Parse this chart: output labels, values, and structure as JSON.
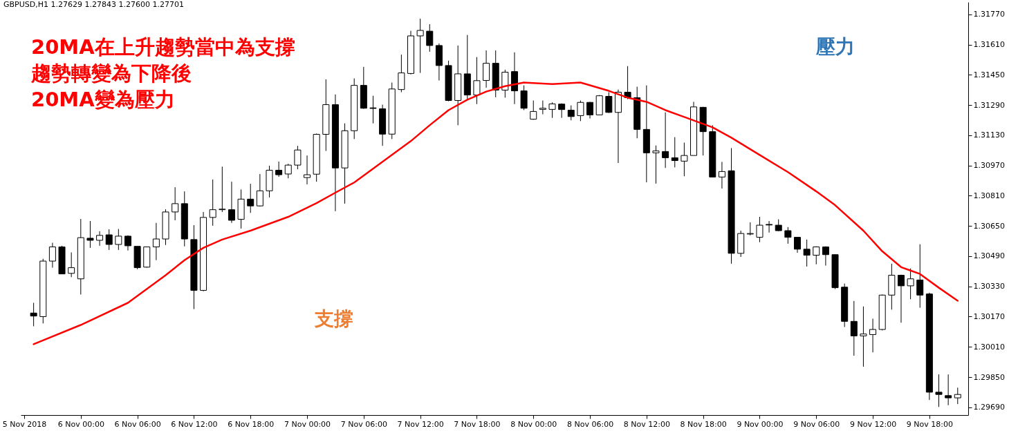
{
  "chart_data": {
    "type": "candlestick",
    "annotations": [
      "GBPUSD,H1 1.27629 1.27843 1.27600 1.27701",
      "20MA在上升趨勢當中為支撐",
      "趨勢轉變為下降後",
      "20MA變為壓力",
      "支撐",
      "壓力"
    ],
    "x": [
      "2018-11-05T19:00",
      "2018-11-05T20:00",
      "2018-11-05T21:00",
      "2018-11-05T22:00",
      "2018-11-05T23:00",
      "2018-11-06T00:00",
      "2018-11-06T01:00",
      "2018-11-06T02:00",
      "2018-11-06T03:00",
      "2018-11-06T04:00",
      "2018-11-06T05:00",
      "2018-11-06T06:00",
      "2018-11-06T07:00",
      "2018-11-06T08:00",
      "2018-11-06T09:00",
      "2018-11-06T10:00",
      "2018-11-06T11:00",
      "2018-11-06T12:00",
      "2018-11-06T13:00",
      "2018-11-06T14:00",
      "2018-11-06T15:00",
      "2018-11-06T16:00",
      "2018-11-06T17:00",
      "2018-11-06T18:00",
      "2018-11-06T19:00",
      "2018-11-06T20:00",
      "2018-11-06T21:00",
      "2018-11-06T22:00",
      "2018-11-06T23:00",
      "2018-11-07T00:00",
      "2018-11-07T01:00",
      "2018-11-07T02:00",
      "2018-11-07T03:00",
      "2018-11-07T04:00",
      "2018-11-07T05:00",
      "2018-11-07T06:00",
      "2018-11-07T07:00",
      "2018-11-07T08:00",
      "2018-11-07T09:00",
      "2018-11-07T10:00",
      "2018-11-07T11:00",
      "2018-11-07T12:00",
      "2018-11-07T13:00",
      "2018-11-07T14:00",
      "2018-11-07T15:00",
      "2018-11-07T16:00",
      "2018-11-07T17:00",
      "2018-11-07T18:00",
      "2018-11-07T19:00",
      "2018-11-07T20:00",
      "2018-11-07T21:00",
      "2018-11-07T22:00",
      "2018-11-07T23:00",
      "2018-11-08T00:00",
      "2018-11-08T01:00",
      "2018-11-08T02:00",
      "2018-11-08T03:00",
      "2018-11-08T04:00",
      "2018-11-08T05:00",
      "2018-11-08T06:00",
      "2018-11-08T07:00",
      "2018-11-08T08:00",
      "2018-11-08T09:00",
      "2018-11-08T10:00",
      "2018-11-08T11:00",
      "2018-11-08T12:00",
      "2018-11-08T13:00",
      "2018-11-08T14:00",
      "2018-11-08T15:00",
      "2018-11-08T16:00",
      "2018-11-08T17:00",
      "2018-11-08T18:00",
      "2018-11-08T19:00",
      "2018-11-08T20:00",
      "2018-11-08T21:00",
      "2018-11-08T22:00",
      "2018-11-08T23:00",
      "2018-11-09T00:00",
      "2018-11-09T01:00",
      "2018-11-09T02:00",
      "2018-11-09T03:00",
      "2018-11-09T04:00",
      "2018-11-09T05:00",
      "2018-11-09T06:00",
      "2018-11-09T07:00",
      "2018-11-09T08:00",
      "2018-11-09T09:00",
      "2018-11-09T10:00",
      "2018-11-09T11:00",
      "2018-11-09T12:00",
      "2018-11-09T13:00",
      "2018-11-09T14:00",
      "2018-11-09T15:00",
      "2018-11-09T16:00",
      "2018-11-09T17:00",
      "2018-11-09T18:00",
      "2018-11-09T19:00",
      "2018-11-09T20:00",
      "2018-11-09T21:00"
    ],
    "ohlc": [
      [
        1.30189,
        1.30243,
        1.30119,
        1.30173
      ],
      [
        1.3017,
        1.30476,
        1.30134,
        1.30464
      ],
      [
        1.30464,
        1.30561,
        1.30429,
        1.30539
      ],
      [
        1.30539,
        1.30545,
        1.30396,
        1.30396
      ],
      [
        1.30399,
        1.3051,
        1.30379,
        1.30429
      ],
      [
        1.3037,
        1.30687,
        1.30287,
        1.30588
      ],
      [
        1.30585,
        1.30676,
        1.30534,
        1.30574
      ],
      [
        1.30574,
        1.30622,
        1.30545,
        1.306
      ],
      [
        1.30603,
        1.30632,
        1.30523,
        1.30552
      ],
      [
        1.30552,
        1.30634,
        1.30523,
        1.30596
      ],
      [
        1.30596,
        1.306,
        1.3052,
        1.30545
      ],
      [
        1.30542,
        1.30542,
        1.30421,
        1.30429
      ],
      [
        1.30432,
        1.30539,
        1.30429,
        1.30539
      ],
      [
        1.30539,
        1.30666,
        1.30469,
        1.30581
      ],
      [
        1.30581,
        1.30738,
        1.30549,
        1.30724
      ],
      [
        1.30724,
        1.30855,
        1.3068,
        1.30768
      ],
      [
        1.30768,
        1.30833,
        1.30542,
        1.30581
      ],
      [
        1.30578,
        1.30654,
        1.3021,
        1.30309
      ],
      [
        1.30309,
        1.30724,
        1.30304,
        1.30695
      ],
      [
        1.30695,
        1.30896,
        1.30651,
        1.30736
      ],
      [
        1.30736,
        1.30964,
        1.30724,
        1.30739
      ],
      [
        1.30736,
        1.30884,
        1.30666,
        1.3068
      ],
      [
        1.30685,
        1.30843,
        1.30636,
        1.30792
      ],
      [
        1.30792,
        1.30873,
        1.30719,
        1.30756
      ],
      [
        1.30756,
        1.30925,
        1.30753,
        1.30836
      ],
      [
        1.30836,
        1.30969,
        1.30801,
        1.30945
      ],
      [
        1.30945,
        1.30991,
        1.3091,
        1.30921
      ],
      [
        1.30925,
        1.30979,
        1.30902,
        1.30972
      ],
      [
        1.30972,
        1.31074,
        1.3095,
        1.31052
      ],
      [
        1.30906,
        1.31023,
        1.3087,
        1.30921
      ],
      [
        1.30924,
        1.31139,
        1.30884,
        1.31135
      ],
      [
        1.31135,
        1.31426,
        1.31047,
        1.31292
      ],
      [
        1.31292,
        1.31346,
        1.30728,
        1.30957
      ],
      [
        1.30957,
        1.31193,
        1.30768,
        1.31154
      ],
      [
        1.31154,
        1.31431,
        1.3111,
        1.31394
      ],
      [
        1.31394,
        1.31492,
        1.3127,
        1.31273
      ],
      [
        1.31275,
        1.31339,
        1.31193,
        1.31272
      ],
      [
        1.3127,
        1.31292,
        1.31074,
        1.31136
      ],
      [
        1.31136,
        1.31409,
        1.3111,
        1.31375
      ],
      [
        1.31372,
        1.31557,
        1.31358,
        1.3146
      ],
      [
        1.31457,
        1.31683,
        1.31452,
        1.31656
      ],
      [
        1.31656,
        1.31747,
        1.3146,
        1.31685
      ],
      [
        1.31681,
        1.31718,
        1.31572,
        1.31605
      ],
      [
        1.31605,
        1.31616,
        1.3142,
        1.31499
      ],
      [
        1.31499,
        1.31525,
        1.3131,
        1.31314
      ],
      [
        1.31314,
        1.31605,
        1.31183,
        1.31455
      ],
      [
        1.31455,
        1.31661,
        1.31318,
        1.31343
      ],
      [
        1.31343,
        1.31544,
        1.31295,
        1.31419
      ],
      [
        1.3142,
        1.31579,
        1.31382,
        1.31511
      ],
      [
        1.31511,
        1.31579,
        1.31331,
        1.31369
      ],
      [
        1.31369,
        1.31477,
        1.31329,
        1.31464
      ],
      [
        1.31467,
        1.31569,
        1.31295,
        1.31365
      ],
      [
        1.31365,
        1.31394,
        1.31263,
        1.31273
      ],
      [
        1.31215,
        1.31314,
        1.31212,
        1.31256
      ],
      [
        1.31267,
        1.31314,
        1.31241,
        1.31273
      ],
      [
        1.31267,
        1.31304,
        1.31222,
        1.31296
      ],
      [
        1.31295,
        1.31299,
        1.31222,
        1.31266
      ],
      [
        1.31263,
        1.31288,
        1.31209,
        1.31229
      ],
      [
        1.31234,
        1.31314,
        1.31205,
        1.31304
      ],
      [
        1.31304,
        1.31307,
        1.31219,
        1.31238
      ],
      [
        1.31238,
        1.31343,
        1.31238,
        1.31339
      ],
      [
        1.31336,
        1.31358,
        1.31248,
        1.31251
      ],
      [
        1.31251,
        1.31372,
        1.30983,
        1.31358
      ],
      [
        1.31358,
        1.31496,
        1.31321,
        1.31329
      ],
      [
        1.31329,
        1.31387,
        1.31114,
        1.31161
      ],
      [
        1.31161,
        1.31394,
        1.30881,
        1.31037
      ],
      [
        1.31037,
        1.31076,
        1.30874,
        1.31047
      ],
      [
        1.31044,
        1.31251,
        1.30957,
        1.31011
      ],
      [
        1.31011,
        1.3112,
        1.3096,
        1.30996
      ],
      [
        1.30993,
        1.31091,
        1.30913,
        1.31023
      ],
      [
        1.31023,
        1.31307,
        1.31023,
        1.3128
      ],
      [
        1.31278,
        1.3128,
        1.31023,
        1.31149
      ],
      [
        1.31149,
        1.31183,
        1.30909,
        1.30909
      ],
      [
        1.30909,
        1.30989,
        1.30848,
        1.30938
      ],
      [
        1.30942,
        1.31062,
        1.3045,
        1.30505
      ],
      [
        1.30505,
        1.30625,
        1.30486,
        1.3061
      ],
      [
        1.30607,
        1.30669,
        1.306,
        1.3061
      ],
      [
        1.3059,
        1.30698,
        1.30564,
        1.30654
      ],
      [
        1.30658,
        1.30676,
        1.30615,
        1.30655
      ],
      [
        1.30654,
        1.30685,
        1.30622,
        1.30625
      ],
      [
        1.30625,
        1.30644,
        1.30556,
        1.3059
      ],
      [
        1.3059,
        1.3059,
        1.30508,
        1.30527
      ],
      [
        1.30527,
        1.30578,
        1.30435,
        1.30495
      ],
      [
        1.30495,
        1.30542,
        1.30447,
        1.30539
      ],
      [
        1.30539,
        1.30542,
        1.3044,
        1.30498
      ],
      [
        1.30498,
        1.30498,
        1.30316,
        1.30323
      ],
      [
        1.30326,
        1.30345,
        1.30115,
        1.30145
      ],
      [
        1.30145,
        1.30253,
        1.29963,
        1.30068
      ],
      [
        1.30068,
        1.30224,
        1.29905,
        1.30078
      ],
      [
        1.30075,
        1.30159,
        1.29981,
        1.30102
      ],
      [
        1.30102,
        1.30287,
        1.30097,
        1.30284
      ],
      [
        1.30284,
        1.3045,
        1.30207,
        1.30389
      ],
      [
        1.30389,
        1.30392,
        1.30138,
        1.30333
      ],
      [
        1.30333,
        1.30425,
        1.30262,
        1.3037
      ],
      [
        1.30364,
        1.30553,
        1.30217,
        1.30284
      ],
      [
        1.3029,
        1.30297,
        1.29729,
        1.2977
      ],
      [
        1.2977,
        1.29864,
        1.29692,
        1.29758
      ],
      [
        1.29752,
        1.29864,
        1.29701,
        1.2974
      ],
      [
        1.2974,
        1.29794,
        1.29707,
        1.29758
      ]
    ],
    "series": [
      {
        "type": "line",
        "color": "#ff0000",
        "x": [
          "2018-11-05T19:00",
          "2018-11-06T00:00",
          "2018-11-06T05:00",
          "2018-11-06T09:00",
          "2018-11-06T11:00",
          "2018-11-06T13:00",
          "2018-11-06T15:00",
          "2018-11-06T18:00",
          "2018-11-06T22:00",
          "2018-11-07T01:00",
          "2018-11-07T03:00",
          "2018-11-07T05:00",
          "2018-11-07T07:00",
          "2018-11-07T09:00",
          "2018-11-07T11:00",
          "2018-11-07T13:00",
          "2018-11-07T15:00",
          "2018-11-07T17:00",
          "2018-11-07T19:00",
          "2018-11-07T21:00",
          "2018-11-07T23:00",
          "2018-11-08T02:00",
          "2018-11-08T05:00",
          "2018-11-08T08:00",
          "2018-11-08T10:00",
          "2018-11-08T12:00",
          "2018-11-08T14:00",
          "2018-11-08T16:00",
          "2018-11-08T18:00",
          "2018-11-08T19:00",
          "2018-11-08T21:00",
          "2018-11-09T00:00",
          "2018-11-09T03:00",
          "2018-11-09T06:00",
          "2018-11-09T08:00",
          "2018-11-09T11:00",
          "2018-11-09T13:00",
          "2018-11-09T15:00",
          "2018-11-09T16:00",
          "2018-11-09T17:00",
          "2018-11-09T19:00",
          "2018-11-09T21:00"
        ],
        "values": [
          1.30024,
          1.30126,
          1.30243,
          1.30389,
          1.30469,
          1.30534,
          1.30578,
          1.30625,
          1.30698,
          1.30771,
          1.30826,
          1.3088,
          1.30953,
          1.31026,
          1.31099,
          1.31183,
          1.31263,
          1.31318,
          1.31361,
          1.3139,
          1.31409,
          1.31401,
          1.31409,
          1.31365,
          1.31329,
          1.31307,
          1.31263,
          1.31227,
          1.3119,
          1.31172,
          1.31117,
          1.31026,
          1.30935,
          1.30833,
          1.3076,
          1.30625,
          1.30516,
          1.30432,
          1.30414,
          1.30396,
          1.30323,
          1.30254
        ]
      }
    ],
    "xlim": [
      "2018-11-05T18:00",
      "2018-11-09T21:45"
    ],
    "xticks": [
      {
        "value": "2018-11-05T18:00",
        "label": "5 Nov 2018"
      },
      {
        "value": "2018-11-06T00:00",
        "label": "6 Nov 00:00"
      },
      {
        "value": "2018-11-06T06:00",
        "label": "6 Nov 06:00"
      },
      {
        "value": "2018-11-06T12:00",
        "label": "6 Nov 12:00"
      },
      {
        "value": "2018-11-06T18:00",
        "label": "6 Nov 18:00"
      },
      {
        "value": "2018-11-07T00:00",
        "label": "7 Nov 00:00"
      },
      {
        "value": "2018-11-07T06:00",
        "label": "7 Nov 06:00"
      },
      {
        "value": "2018-11-07T12:00",
        "label": "7 Nov 12:00"
      },
      {
        "value": "2018-11-07T18:00",
        "label": "7 Nov 18:00"
      },
      {
        "value": "2018-11-08T00:00",
        "label": "8 Nov 00:00"
      },
      {
        "value": "2018-11-08T06:00",
        "label": "8 Nov 06:00"
      },
      {
        "value": "2018-11-08T12:00",
        "label": "8 Nov 12:00"
      },
      {
        "value": "2018-11-08T18:00",
        "label": "8 Nov 18:00"
      },
      {
        "value": "2018-11-09T00:00",
        "label": "9 Nov 00:00"
      },
      {
        "value": "2018-11-09T06:00",
        "label": "9 Nov 06:00"
      },
      {
        "value": "2018-11-09T12:00",
        "label": "9 Nov 12:00"
      },
      {
        "value": "2018-11-09T18:00",
        "label": "9 Nov 18:00"
      }
    ],
    "ylim": [
      1.29649,
      1.31835
    ],
    "yticks": [
      {
        "value": 1.2969,
        "label": "1.29690"
      },
      {
        "value": 1.2985,
        "label": "1.29850"
      },
      {
        "value": 1.3001,
        "label": "1.30010"
      },
      {
        "value": 1.3017,
        "label": "1.30170"
      },
      {
        "value": 1.3033,
        "label": "1.30330"
      },
      {
        "value": 1.3049,
        "label": "1.30490"
      },
      {
        "value": 1.3065,
        "label": "1.30650"
      },
      {
        "value": 1.3081,
        "label": "1.30810"
      },
      {
        "value": 1.3097,
        "label": "1.30970"
      },
      {
        "value": 1.3113,
        "label": "1.31130"
      },
      {
        "value": 1.3129,
        "label": "1.31290"
      },
      {
        "value": 1.3145,
        "label": "1.31450"
      },
      {
        "value": 1.3161,
        "label": "1.31610"
      },
      {
        "value": 1.3177,
        "label": "1.31770"
      }
    ],
    "grid": false
  }
}
